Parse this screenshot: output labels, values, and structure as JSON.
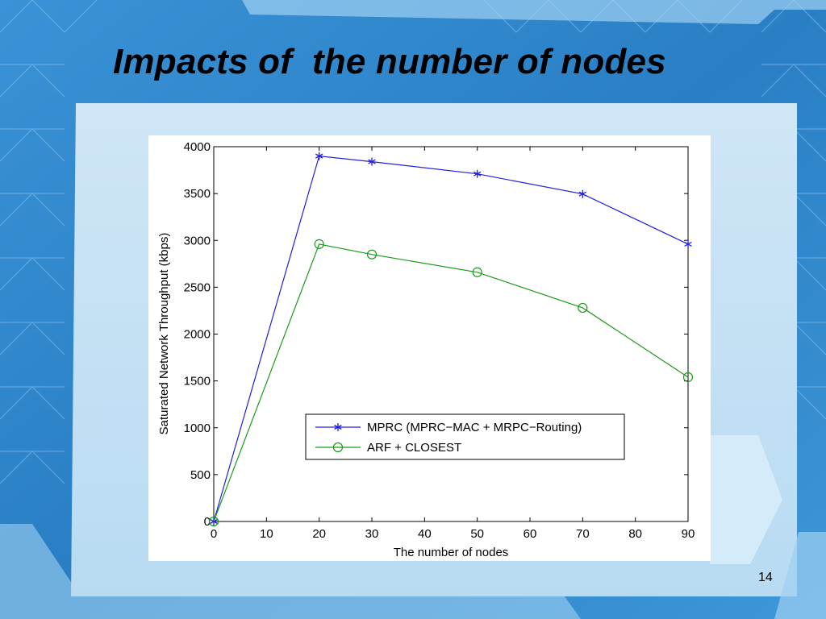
{
  "slide": {
    "title": "Impacts of  the number of nodes",
    "page_number": "14"
  },
  "theme": {
    "background": "#2a7fc4",
    "content_panel": "#c6e2f5"
  },
  "chart_data": {
    "type": "line",
    "x": [
      0,
      20,
      30,
      50,
      70,
      90
    ],
    "series": [
      {
        "name": "MPRC (MPRC−MAC + MRPC−Routing)",
        "values": [
          0,
          3900,
          3840,
          3710,
          3495,
          2960
        ],
        "color": "#1f1fe0",
        "marker": "asterisk"
      },
      {
        "name": "ARF + CLOSEST",
        "values": [
          0,
          2960,
          2850,
          2660,
          2280,
          1540
        ],
        "color": "#1a9a1a",
        "marker": "circle"
      }
    ],
    "xlabel": "The number of nodes",
    "ylabel": "Saturated Network Throughput (kbps)",
    "xlim": [
      0,
      90
    ],
    "ylim": [
      0,
      4000
    ],
    "xticks": [
      0,
      10,
      20,
      30,
      40,
      50,
      60,
      70,
      80,
      90
    ],
    "yticks": [
      0,
      500,
      1000,
      1500,
      2000,
      2500,
      3000,
      3500,
      4000
    ],
    "grid": false,
    "legend_position": "lower-center"
  }
}
